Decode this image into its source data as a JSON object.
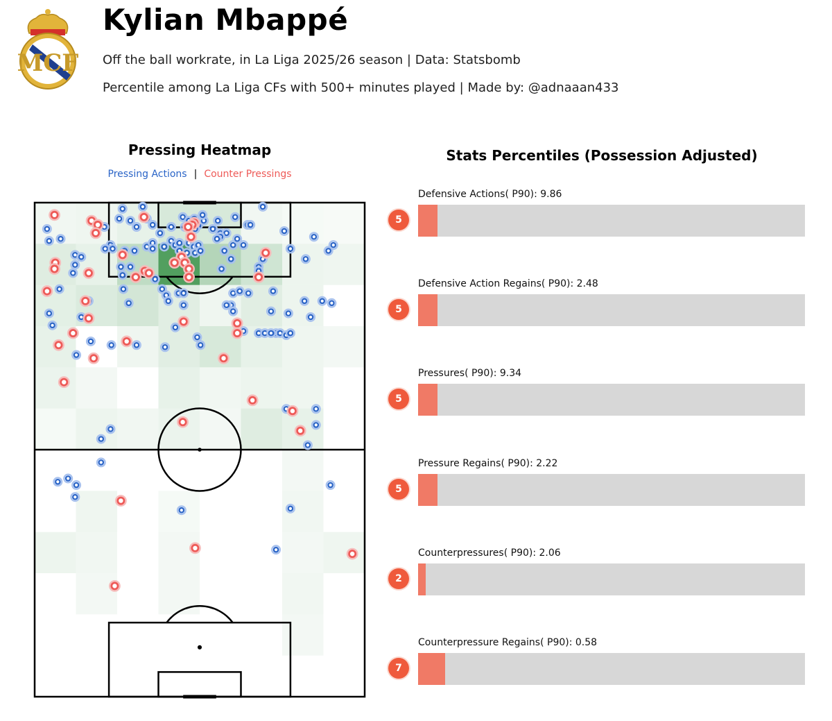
{
  "header": {
    "title": "Kylian Mbappé",
    "subtitle_1": "Off the ball workrate, in La Liga 2025/26 season | Data: Statsbomb",
    "subtitle_2": "Percentile among La Liga CFs with 500+ minutes played | Made by: @adnaaan433",
    "crest_text": "MCF"
  },
  "heatmap": {
    "title": "Pressing Heatmap",
    "legend_pressing": "Pressing Actions",
    "legend_separator": "|",
    "legend_counter": "Counter Pressings"
  },
  "stats": {
    "title": "Stats Percentiles (Possession Adjusted)",
    "items": [
      {
        "label": "Defensive Actions( P90): 9.86",
        "percentile": 5,
        "percentile_label": "5"
      },
      {
        "label": "Defensive Action Regains( P90): 2.48",
        "percentile": 5,
        "percentile_label": "5"
      },
      {
        "label": "Pressures( P90): 9.34",
        "percentile": 5,
        "percentile_label": "5"
      },
      {
        "label": "Pressure Regains( P90): 2.22",
        "percentile": 5,
        "percentile_label": "5"
      },
      {
        "label": "Counterpressures( P90): 2.06",
        "percentile": 2,
        "percentile_label": "2"
      },
      {
        "label": "Counterpressure Regains( P90): 0.58",
        "percentile": 7,
        "percentile_label": "7"
      }
    ]
  },
  "colors": {
    "pressing": "#2a64c7",
    "counter": "#ee5a57",
    "badge": "#ef5a3c",
    "bar_fill": "#f07a66",
    "bar_track": "#d7d7d7",
    "heat": "#2e8b3e",
    "crest_gold": "#e2b43a",
    "crest_blue": "#1f3f8f"
  },
  "chart_data": [
    {
      "type": "heatmap",
      "title": "Pressing Heatmap",
      "pitch": {
        "length": 120,
        "width": 80,
        "orientation": "vertical",
        "attack_direction": "up"
      },
      "grid": {
        "cols": 8,
        "rows": 12
      },
      "cells": [
        [
          0.05,
          0.06,
          0.1,
          0.18,
          0.18,
          0.05,
          0.03,
          0.02
        ],
        [
          0.14,
          0.1,
          0.3,
          0.85,
          0.36,
          0.22,
          0.07,
          0.06
        ],
        [
          0.12,
          0.16,
          0.2,
          0.13,
          0.06,
          0.13,
          0.07,
          0.0
        ],
        [
          0.1,
          0.0,
          0.06,
          0.13,
          0.18,
          0.1,
          0.06,
          0.04
        ],
        [
          0.08,
          0.04,
          0.0,
          0.1,
          0.05,
          0.07,
          0.06,
          0.0
        ],
        [
          0.03,
          0.07,
          0.05,
          0.08,
          0.04,
          0.14,
          0.1,
          0.0
        ],
        [
          0.0,
          0.0,
          0.0,
          0.0,
          0.0,
          0.0,
          0.04,
          0.0
        ],
        [
          0.0,
          0.06,
          0.0,
          0.03,
          0.0,
          0.0,
          0.05,
          0.0
        ],
        [
          0.07,
          0.05,
          0.0,
          0.04,
          0.0,
          0.0,
          0.04,
          0.06
        ],
        [
          0.0,
          0.04,
          0.0,
          0.04,
          0.0,
          0.0,
          0.05,
          0.0
        ],
        [
          0.0,
          0.0,
          0.0,
          0.0,
          0.0,
          0.0,
          0.04,
          0.0
        ],
        [
          0.0,
          0.0,
          0.0,
          0.0,
          0.0,
          0.0,
          0.0,
          0.0
        ]
      ],
      "series": [
        {
          "name": "Pressing Actions",
          "points": [
            [
              26.2,
              119.0
            ],
            [
              21.3,
              118.5
            ],
            [
              55.3,
              119.0
            ],
            [
              20.5,
              116.1
            ],
            [
              23.2,
              115.6
            ],
            [
              27.2,
              116.1
            ],
            [
              35.9,
              116.5
            ],
            [
              37.4,
              115.6
            ],
            [
              38.7,
              116.1
            ],
            [
              39.7,
              114.6
            ],
            [
              41.0,
              115.6
            ],
            [
              40.7,
              117.0
            ],
            [
              44.4,
              115.6
            ],
            [
              48.6,
              116.5
            ],
            [
              51.6,
              114.6
            ],
            [
              52.3,
              114.6
            ],
            [
              16.9,
              114.1
            ],
            [
              24.7,
              114.1
            ],
            [
              28.6,
              114.6
            ],
            [
              33.1,
              114.1
            ],
            [
              36.4,
              114.1
            ],
            [
              38.9,
              113.6
            ],
            [
              43.2,
              113.6
            ],
            [
              45.0,
              112.6
            ],
            [
              46.5,
              112.6
            ],
            [
              45.0,
              111.7
            ],
            [
              44.2,
              111.2
            ],
            [
              30.4,
              112.6
            ],
            [
              3.0,
              113.6
            ],
            [
              3.5,
              110.7
            ],
            [
              6.3,
              111.2
            ],
            [
              18.4,
              109.7
            ],
            [
              27.2,
              109.3
            ],
            [
              28.6,
              110.2
            ],
            [
              31.4,
              109.3
            ],
            [
              33.1,
              110.7
            ],
            [
              34.1,
              109.7
            ],
            [
              35.1,
              110.2
            ],
            [
              37.4,
              110.2
            ],
            [
              38.6,
              109.3
            ],
            [
              39.7,
              109.7
            ],
            [
              48.1,
              109.7
            ],
            [
              50.6,
              109.7
            ],
            [
              49.1,
              111.2
            ],
            [
              60.5,
              113.1
            ],
            [
              67.7,
              111.7
            ],
            [
              72.4,
              109.7
            ],
            [
              17.1,
              108.8
            ],
            [
              18.9,
              108.8
            ],
            [
              21.8,
              108.3
            ],
            [
              24.2,
              108.3
            ],
            [
              28.6,
              108.8
            ],
            [
              35.1,
              108.3
            ],
            [
              36.9,
              107.8
            ],
            [
              38.9,
              107.8
            ],
            [
              40.2,
              108.3
            ],
            [
              46.0,
              108.3
            ],
            [
              62.0,
              108.8
            ],
            [
              71.2,
              108.3
            ],
            [
              9.8,
              107.3
            ],
            [
              11.3,
              106.8
            ],
            [
              47.6,
              106.3
            ],
            [
              55.3,
              106.3
            ],
            [
              65.7,
              106.3
            ],
            [
              9.8,
              104.9
            ],
            [
              20.9,
              104.4
            ],
            [
              23.2,
              104.4
            ],
            [
              54.3,
              104.4
            ],
            [
              54.3,
              103.4
            ],
            [
              45.3,
              103.9
            ],
            [
              9.3,
              102.9
            ],
            [
              21.3,
              102.4
            ],
            [
              29.2,
              101.4
            ],
            [
              6.0,
              99.0
            ],
            [
              21.5,
              99.0
            ],
            [
              30.9,
              99.0
            ],
            [
              31.9,
              97.5
            ],
            [
              34.9,
              98.0
            ],
            [
              36.1,
              98.0
            ],
            [
              48.1,
              98.0
            ],
            [
              49.7,
              98.5
            ],
            [
              51.8,
              98.0
            ],
            [
              57.8,
              98.5
            ],
            [
              13.1,
              96.1
            ],
            [
              32.4,
              96.1
            ],
            [
              22.8,
              95.6
            ],
            [
              65.4,
              96.1
            ],
            [
              69.7,
              96.1
            ],
            [
              72.0,
              95.6
            ],
            [
              36.1,
              95.1
            ],
            [
              47.6,
              95.1
            ],
            [
              57.3,
              93.6
            ],
            [
              3.5,
              93.1
            ],
            [
              11.3,
              92.2
            ],
            [
              48.1,
              93.6
            ],
            [
              46.5,
              95.1
            ],
            [
              61.5,
              93.1
            ],
            [
              66.9,
              92.2
            ],
            [
              4.3,
              90.2
            ],
            [
              9.3,
              88.3
            ],
            [
              34.1,
              89.7
            ],
            [
              58.5,
              88.3
            ],
            [
              50.6,
              88.8
            ],
            [
              54.3,
              88.3
            ],
            [
              55.8,
              88.3
            ],
            [
              57.3,
              88.3
            ],
            [
              59.5,
              88.3
            ],
            [
              61.0,
              87.8
            ],
            [
              62.0,
              88.3
            ],
            [
              13.6,
              86.3
            ],
            [
              18.6,
              85.4
            ],
            [
              24.7,
              85.4
            ],
            [
              39.4,
              87.3
            ],
            [
              40.2,
              85.4
            ],
            [
              10.1,
              83.0
            ],
            [
              31.6,
              84.9
            ],
            [
              61.0,
              69.9
            ],
            [
              68.2,
              66.0
            ],
            [
              18.4,
              65.0
            ],
            [
              16.1,
              62.6
            ],
            [
              66.2,
              61.1
            ],
            [
              68.2,
              69.9
            ],
            [
              16.1,
              56.9
            ],
            [
              5.6,
              52.2
            ],
            [
              8.1,
              53.0
            ],
            [
              10.1,
              51.4
            ],
            [
              9.8,
              48.5
            ],
            [
              71.7,
              51.4
            ],
            [
              35.6,
              45.3
            ],
            [
              62.0,
              45.7
            ],
            [
              58.5,
              35.7
            ]
          ]
        },
        {
          "name": "Counter Pressings",
          "points": [
            [
              4.8,
              117.0
            ],
            [
              13.8,
              115.6
            ],
            [
              26.5,
              116.5
            ],
            [
              15.3,
              114.6
            ],
            [
              14.8,
              112.6
            ],
            [
              38.7,
              115.1
            ],
            [
              37.9,
              111.7
            ],
            [
              38.2,
              114.6
            ],
            [
              37.2,
              114.1
            ],
            [
              21.3,
              107.3
            ],
            [
              35.6,
              106.8
            ],
            [
              36.4,
              105.4
            ],
            [
              37.4,
              103.9
            ],
            [
              56.0,
              107.8
            ],
            [
              5.0,
              105.4
            ],
            [
              4.8,
              103.9
            ],
            [
              13.1,
              102.9
            ],
            [
              24.5,
              101.9
            ],
            [
              26.7,
              103.4
            ],
            [
              27.7,
              102.9
            ],
            [
              33.9,
              105.4
            ],
            [
              37.4,
              101.9
            ],
            [
              54.3,
              101.9
            ],
            [
              3.0,
              98.5
            ],
            [
              12.3,
              96.1
            ],
            [
              13.1,
              91.9
            ],
            [
              36.1,
              91.1
            ],
            [
              49.1,
              90.7
            ],
            [
              49.1,
              88.3
            ],
            [
              9.3,
              88.3
            ],
            [
              22.3,
              86.3
            ],
            [
              5.8,
              85.4
            ],
            [
              14.3,
              82.2
            ],
            [
              45.8,
              82.2
            ],
            [
              7.1,
              76.4
            ],
            [
              52.8,
              72.0
            ],
            [
              35.9,
              66.7
            ],
            [
              62.5,
              69.4
            ],
            [
              64.4,
              64.6
            ],
            [
              20.9,
              47.6
            ],
            [
              38.9,
              36.1
            ],
            [
              77.0,
              34.7
            ],
            [
              19.4,
              26.9
            ]
          ]
        }
      ]
    },
    {
      "type": "bar",
      "orientation": "horizontal",
      "title": "Stats Percentiles (Possession Adjusted)",
      "categories": [
        "Defensive Actions( P90): 9.86",
        "Defensive Action Regains( P90): 2.48",
        "Pressures( P90): 9.34",
        "Pressure Regains( P90): 2.22",
        "Counterpressures( P90): 2.06",
        "Counterpressure Regains( P90): 0.58"
      ],
      "values": [
        5,
        5,
        5,
        5,
        2,
        7
      ],
      "xlim": [
        0,
        100
      ]
    }
  ]
}
